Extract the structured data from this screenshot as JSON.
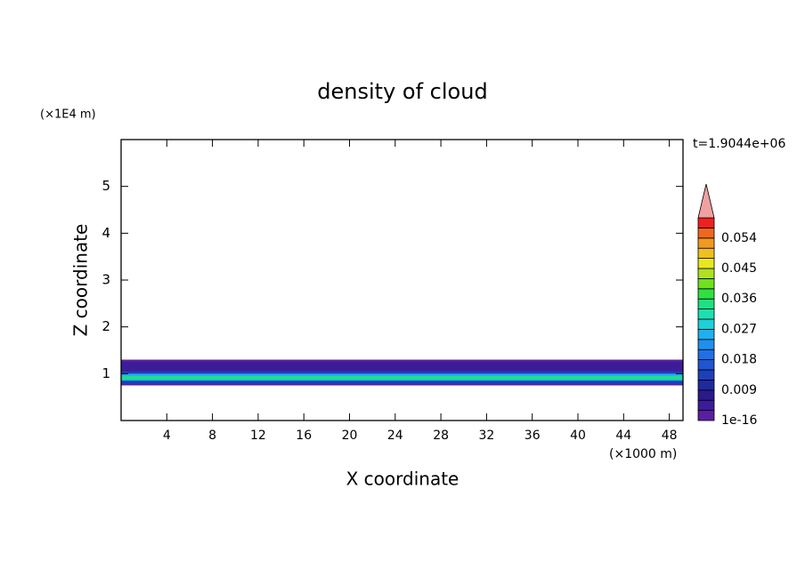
{
  "chart_data": {
    "type": "contour",
    "title": "density of cloud",
    "y_unit": "(×1E4 m)",
    "x_unit": "(×1000 m)",
    "time_label": "t=1.9044e+06",
    "xlabel": "X coordinate",
    "ylabel": "Z coordinate",
    "xlim": [
      0,
      49.2
    ],
    "xticks": [
      4,
      8,
      12,
      16,
      20,
      24,
      28,
      32,
      36,
      40,
      44,
      48
    ],
    "ylim": [
      0,
      6
    ],
    "yticks": [
      1,
      2,
      3,
      4,
      5
    ],
    "layers": [
      {
        "z": [
          0.75,
          1.3
        ],
        "value": 0.002
      },
      {
        "z": [
          1.05,
          1.25
        ],
        "value": 0.005
      },
      {
        "z": [
          0.78,
          1.05
        ],
        "value": 0.013
      },
      {
        "z": [
          0.85,
          1.0
        ],
        "value": 0.025
      },
      {
        "z": [
          0.88,
          0.95
        ],
        "value": 0.034
      }
    ],
    "colorbar": {
      "levels_lim": [
        0,
        0.06
      ],
      "ticks": [
        1e-16,
        0.009,
        0.018,
        0.027,
        0.036,
        0.045,
        0.054
      ],
      "colors": [
        "#5a1fa0",
        "#3c1c98",
        "#2a1a8c",
        "#1f2aa0",
        "#1f3fb8",
        "#1f55d0",
        "#1f70e8",
        "#1f90f0",
        "#1fb0f0",
        "#1fd0d8",
        "#1fe0b0",
        "#20e080",
        "#30e040",
        "#70e020",
        "#b0e020",
        "#e8e820",
        "#f0c020",
        "#f09a20",
        "#f06820",
        "#f02020"
      ],
      "extend_color": "#f0a0a0"
    }
  }
}
